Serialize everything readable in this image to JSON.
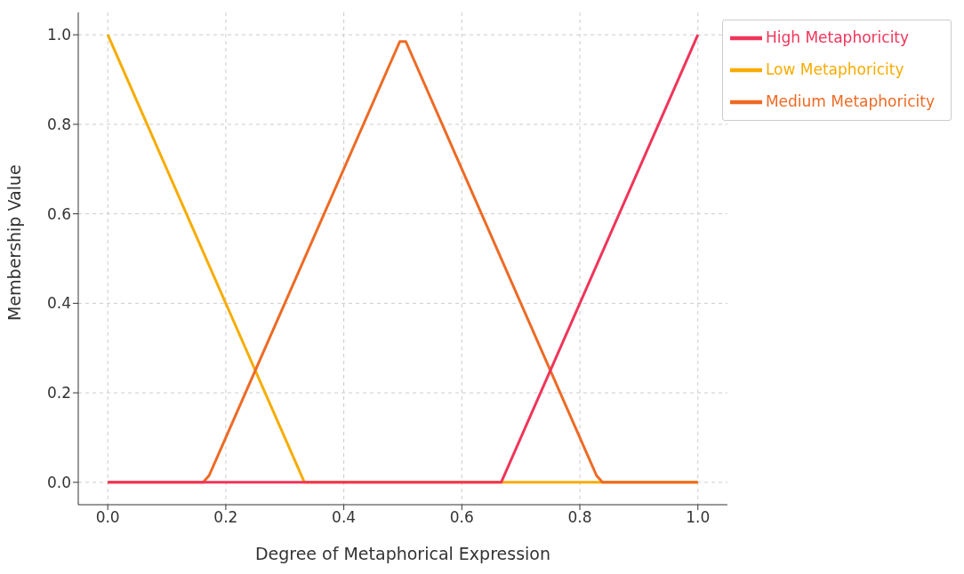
{
  "chart_data": {
    "type": "line",
    "xlabel": "Degree of Metaphorical Expression",
    "ylabel": "Membership Value",
    "series": [
      {
        "name": "Low Metaphoricity",
        "color": "#f7ac00",
        "x": [
          0,
          0.3333,
          1
        ],
        "values": [
          1,
          0,
          0
        ]
      },
      {
        "name": "Medium Metaphoricity",
        "color": "#ee6a24",
        "x": [
          0,
          0.1616,
          0.1717,
          0.4949,
          0.5051,
          0.8283,
          0.8384,
          1
        ],
        "values": [
          0,
          0,
          0.015,
          0.985,
          0.985,
          0.015,
          0,
          0
        ]
      },
      {
        "name": "High Metaphoricity",
        "color": "#f0355a",
        "x": [
          0,
          0.6667,
          1
        ],
        "values": [
          0,
          0,
          1
        ]
      }
    ],
    "xlim": [
      -0.05,
      1.05
    ],
    "ylim": [
      -0.05,
      1.05
    ],
    "xticks": [
      {
        "value": 0,
        "label": "0.0"
      },
      {
        "value": 0.2,
        "label": "0.2"
      },
      {
        "value": 0.4,
        "label": "0.4"
      },
      {
        "value": 0.6,
        "label": "0.6"
      },
      {
        "value": 0.8,
        "label": "0.8"
      },
      {
        "value": 1,
        "label": "1.0"
      }
    ],
    "yticks": [
      {
        "value": 0,
        "label": "0.0"
      },
      {
        "value": 0.2,
        "label": "0.2"
      },
      {
        "value": 0.4,
        "label": "0.4"
      },
      {
        "value": 0.6,
        "label": "0.6"
      },
      {
        "value": 0.8,
        "label": "0.8"
      },
      {
        "value": 1,
        "label": "1.0"
      }
    ],
    "grid": true,
    "legend": "top right",
    "marker": "none",
    "line_style": "solid"
  }
}
